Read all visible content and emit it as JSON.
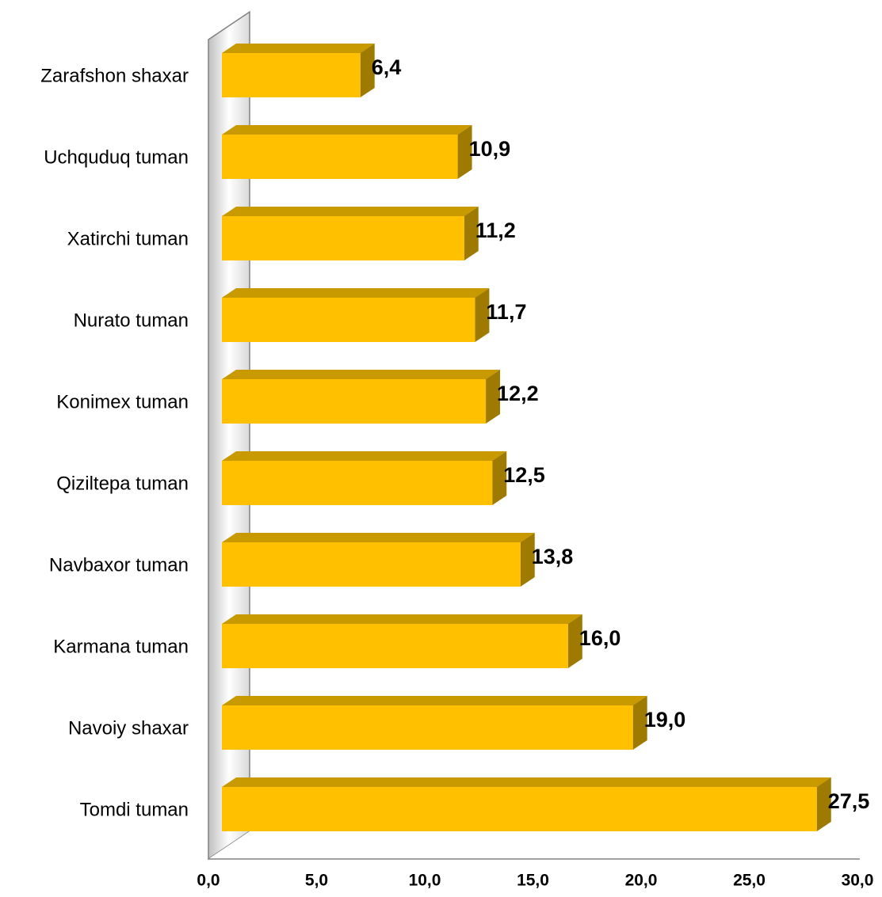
{
  "chart_data": {
    "type": "bar",
    "orientation": "horizontal",
    "categories": [
      "Zarafshon shaxar",
      "Uchquduq tuman",
      "Xatirchi tuman",
      "Nurato tuman",
      "Konimex tuman",
      "Qiziltepa tuman",
      "Navbaxor  tuman",
      "Karmana tuman",
      "Navoiy shaxar",
      "Tomdi tuman"
    ],
    "values": [
      6.4,
      10.9,
      11.2,
      11.7,
      12.2,
      12.5,
      13.8,
      16.0,
      19.0,
      27.5
    ],
    "value_labels": [
      "6,4",
      "10,9",
      "11,2",
      "11,7",
      "12,2",
      "12,5",
      "13,8",
      "16,0",
      "19,0",
      "27,5"
    ],
    "color": "#FFC000",
    "xlim": [
      0,
      30
    ],
    "xticks": [
      {
        "value": 0,
        "label": "0,0"
      },
      {
        "value": 5,
        "label": "5,0"
      },
      {
        "value": 10,
        "label": "10,0"
      },
      {
        "value": 15,
        "label": "15,0"
      },
      {
        "value": 20,
        "label": "20,0"
      },
      {
        "value": 25,
        "label": "25,0"
      },
      {
        "value": 30,
        "label": "30,0"
      }
    ],
    "grid": false
  }
}
